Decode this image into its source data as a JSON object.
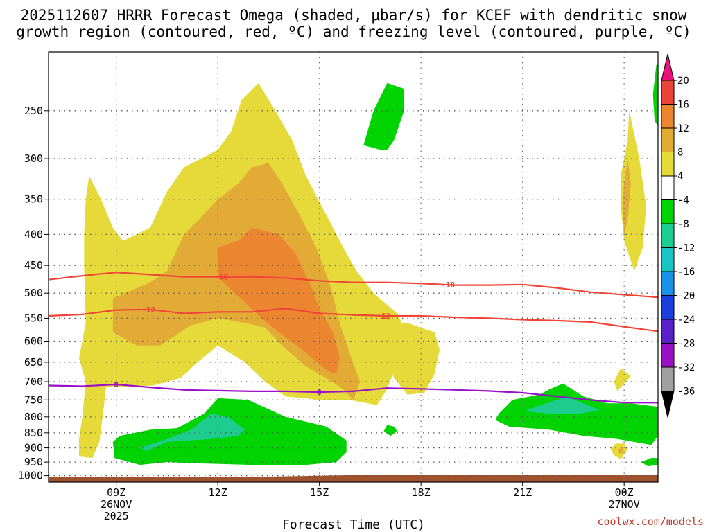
{
  "chart_data": {
    "type": "contour",
    "title_line1": "2025112607 HRRR Forecast Omega (shaded, μbar/s) for KCEF with dendritic snow",
    "title_line2": "growth region (contoured, red, ºC) and freezing level (contoured, purple, ºC)",
    "xlabel": "Forecast Time (UTC)",
    "ylabel": "",
    "credit": "coolwx.com/models",
    "y_axis": {
      "type": "log",
      "range_hpa": [
        1025,
        200
      ],
      "ticks": [
        250,
        300,
        350,
        400,
        450,
        500,
        550,
        600,
        650,
        700,
        750,
        800,
        850,
        900,
        950,
        1000
      ]
    },
    "x_axis": {
      "range_hours": [
        7,
        25
      ],
      "ticks": [
        {
          "hour": 9,
          "line1": "09Z",
          "line2": "26NOV",
          "line3": "2025"
        },
        {
          "hour": 12,
          "line1": "12Z",
          "line2": "",
          "line3": ""
        },
        {
          "hour": 15,
          "line1": "15Z",
          "line2": "",
          "line3": ""
        },
        {
          "hour": 18,
          "line1": "18Z",
          "line2": "",
          "line3": ""
        },
        {
          "hour": 21,
          "line1": "21Z",
          "line2": "",
          "line3": ""
        },
        {
          "hour": 24,
          "line1": "00Z",
          "line2": "27NOV",
          "line3": ""
        }
      ]
    },
    "colorbar": {
      "levels": [
        20,
        16,
        12,
        8,
        4,
        -4,
        -8,
        -12,
        -16,
        -20,
        -24,
        -28,
        -32,
        -36
      ],
      "colors": [
        "#e8137a",
        "#e8443a",
        "#ec8530",
        "#e2ab35",
        "#e6da3a",
        "#ffffff",
        "#00d400",
        "#1dcc8e",
        "#18c4c4",
        "#1a90ea",
        "#1a3fdc",
        "#5a20c8",
        "#9c10c4",
        "#a0a0a0",
        "#000000"
      ]
    },
    "color_keys": {
      "w4": "#e6da3a",
      "w8": "#e2ab35",
      "w12": "#ec8530",
      "m4": "#00d400",
      "m8": "#1dcc8e",
      "ground": "#a0522d",
      "dgz": "#f04436",
      "freezing": "#9a10c8"
    },
    "shaded_regions": [
      {
        "level": "w4",
        "points": [
          [
            7.9,
            930
          ],
          [
            7.9,
            870
          ],
          [
            8.0,
            800
          ],
          [
            8.1,
            700
          ],
          [
            7.9,
            640
          ],
          [
            8.1,
            560
          ],
          [
            8.05,
            450
          ],
          [
            8.05,
            400
          ],
          [
            8.1,
            350
          ],
          [
            8.2,
            320
          ],
          [
            8.55,
            350
          ],
          [
            8.9,
            390
          ],
          [
            9.2,
            410
          ],
          [
            9.6,
            400
          ],
          [
            10.0,
            390
          ],
          [
            10.5,
            340
          ],
          [
            11.0,
            310
          ],
          [
            11.5,
            300
          ],
          [
            12.0,
            290
          ],
          [
            12.4,
            270
          ],
          [
            12.7,
            240
          ],
          [
            13.2,
            225
          ],
          [
            13.7,
            250
          ],
          [
            14.2,
            280
          ],
          [
            14.6,
            320
          ],
          [
            14.9,
            345
          ],
          [
            15.3,
            380
          ],
          [
            15.7,
            420
          ],
          [
            16.1,
            460
          ],
          [
            16.6,
            500
          ],
          [
            17.3,
            540
          ],
          [
            17.5,
            570
          ],
          [
            17.3,
            650
          ],
          [
            17.0,
            720
          ],
          [
            16.7,
            765
          ],
          [
            15.9,
            750
          ],
          [
            15.0,
            750
          ],
          [
            14.0,
            740
          ],
          [
            13.4,
            700
          ],
          [
            12.8,
            650
          ],
          [
            12.0,
            610
          ],
          [
            11.4,
            650
          ],
          [
            10.9,
            690
          ],
          [
            10.1,
            710
          ],
          [
            8.7,
            715
          ],
          [
            8.6,
            800
          ],
          [
            8.5,
            880
          ],
          [
            8.3,
            935
          ]
        ]
      },
      {
        "level": "w4",
        "points": [
          [
            16.7,
            580
          ],
          [
            16.9,
            560
          ],
          [
            17.6,
            560
          ],
          [
            18.4,
            580
          ],
          [
            18.55,
            620
          ],
          [
            18.4,
            680
          ],
          [
            18.1,
            730
          ],
          [
            17.6,
            735
          ],
          [
            17.2,
            690
          ]
        ]
      },
      {
        "level": "w4",
        "points": [
          [
            23.9,
            320
          ],
          [
            24.1,
            280
          ],
          [
            24.15,
            250
          ],
          [
            24.45,
            300
          ],
          [
            24.65,
            360
          ],
          [
            24.55,
            420
          ],
          [
            24.3,
            460
          ],
          [
            24.0,
            410
          ],
          [
            23.9,
            360
          ]
        ]
      },
      {
        "level": "w4",
        "points": [
          [
            23.7,
            700
          ],
          [
            23.9,
            665
          ],
          [
            24.2,
            685
          ],
          [
            23.95,
            710
          ],
          [
            23.8,
            725
          ]
        ]
      },
      {
        "level": "w4",
        "points": [
          [
            23.6,
            905
          ],
          [
            23.75,
            885
          ],
          [
            24.0,
            885
          ],
          [
            24.1,
            905
          ],
          [
            23.9,
            940
          ],
          [
            23.7,
            925
          ]
        ]
      },
      {
        "level": "w8",
        "points": [
          [
            8.9,
            510
          ],
          [
            10.0,
            480
          ],
          [
            10.5,
            460
          ],
          [
            11.0,
            400
          ],
          [
            11.4,
            380
          ],
          [
            12.0,
            350
          ],
          [
            12.6,
            330
          ],
          [
            13.0,
            310
          ],
          [
            13.5,
            305
          ],
          [
            13.9,
            330
          ],
          [
            14.4,
            370
          ],
          [
            14.9,
            420
          ],
          [
            15.3,
            480
          ],
          [
            15.6,
            560
          ],
          [
            15.9,
            630
          ],
          [
            16.2,
            700
          ],
          [
            16.0,
            750
          ],
          [
            15.7,
            720
          ],
          [
            15.2,
            690
          ],
          [
            14.6,
            660
          ],
          [
            13.9,
            610
          ],
          [
            13.4,
            570
          ],
          [
            12.8,
            560
          ],
          [
            12.0,
            550
          ],
          [
            11.2,
            565
          ],
          [
            10.3,
            610
          ],
          [
            9.6,
            610
          ],
          [
            8.9,
            580
          ]
        ]
      },
      {
        "level": "w8",
        "points": [
          [
            24.0,
            330
          ],
          [
            24.1,
            300
          ],
          [
            24.2,
            330
          ],
          [
            24.1,
            380
          ],
          [
            24.0,
            400
          ],
          [
            23.95,
            360
          ]
        ]
      },
      {
        "level": "w8",
        "points": [
          [
            23.83,
            905
          ],
          [
            23.97,
            895
          ],
          [
            23.98,
            915
          ],
          [
            23.85,
            920
          ]
        ]
      },
      {
        "level": "w12",
        "points": [
          [
            12.0,
            420
          ],
          [
            12.6,
            410
          ],
          [
            13.0,
            390
          ],
          [
            13.8,
            400
          ],
          [
            14.3,
            430
          ],
          [
            14.7,
            480
          ],
          [
            15.0,
            530
          ],
          [
            15.4,
            580
          ],
          [
            15.6,
            640
          ],
          [
            15.5,
            680
          ],
          [
            15.2,
            670
          ],
          [
            14.5,
            620
          ],
          [
            13.8,
            580
          ],
          [
            13.3,
            550
          ],
          [
            12.5,
            500
          ],
          [
            12.0,
            470
          ]
        ]
      },
      {
        "level": "m4",
        "points": [
          [
            16.3,
            285
          ],
          [
            16.6,
            250
          ],
          [
            17.0,
            225
          ],
          [
            17.5,
            230
          ],
          [
            17.5,
            250
          ],
          [
            17.2,
            280
          ],
          [
            17.0,
            290
          ],
          [
            16.8,
            290
          ]
        ]
      },
      {
        "level": "m4",
        "points": [
          [
            16.9,
            845
          ],
          [
            17.0,
            825
          ],
          [
            17.2,
            830
          ],
          [
            17.3,
            845
          ],
          [
            17.1,
            860
          ]
        ]
      },
      {
        "level": "m4",
        "points": [
          [
            8.95,
            935
          ],
          [
            8.9,
            880
          ],
          [
            9.1,
            860
          ],
          [
            10.0,
            840
          ],
          [
            10.8,
            835
          ],
          [
            11.6,
            790
          ],
          [
            12.0,
            745
          ],
          [
            12.9,
            750
          ],
          [
            14.0,
            800
          ],
          [
            15.2,
            830
          ],
          [
            15.8,
            875
          ],
          [
            15.8,
            915
          ],
          [
            15.5,
            950
          ],
          [
            14.6,
            960
          ],
          [
            13.0,
            960
          ],
          [
            11.6,
            955
          ],
          [
            10.5,
            950
          ],
          [
            9.7,
            960
          ]
        ]
      },
      {
        "level": "m4",
        "points": [
          [
            20.3,
            790
          ],
          [
            20.7,
            750
          ],
          [
            21.5,
            735
          ],
          [
            21.8,
            720
          ],
          [
            22.2,
            705
          ],
          [
            22.8,
            740
          ],
          [
            23.5,
            760
          ],
          [
            24.2,
            760
          ],
          [
            25.0,
            770
          ],
          [
            25.0,
            860
          ],
          [
            24.8,
            890
          ],
          [
            23.8,
            870
          ],
          [
            22.8,
            860
          ],
          [
            21.8,
            840
          ],
          [
            20.6,
            830
          ],
          [
            20.2,
            810
          ]
        ]
      },
      {
        "level": "m4",
        "points": [
          [
            24.5,
            950
          ],
          [
            24.8,
            935
          ],
          [
            25.0,
            935
          ],
          [
            25.0,
            960
          ],
          [
            24.7,
            965
          ]
        ]
      },
      {
        "level": "m4",
        "points": [
          [
            24.85,
            235
          ],
          [
            24.95,
            210
          ],
          [
            25.0,
            210
          ],
          [
            25.0,
            265
          ],
          [
            24.9,
            260
          ]
        ]
      },
      {
        "level": "m8",
        "points": [
          [
            9.7,
            900
          ],
          [
            10.5,
            870
          ],
          [
            11.2,
            840
          ],
          [
            11.8,
            790
          ],
          [
            12.3,
            800
          ],
          [
            12.8,
            840
          ],
          [
            12.6,
            860
          ],
          [
            11.8,
            870
          ],
          [
            10.5,
            880
          ],
          [
            9.9,
            910
          ]
        ]
      },
      {
        "level": "m8",
        "points": [
          [
            21.1,
            780
          ],
          [
            21.7,
            760
          ],
          [
            22.3,
            740
          ],
          [
            22.8,
            760
          ],
          [
            23.3,
            780
          ],
          [
            22.7,
            790
          ],
          [
            21.8,
            790
          ],
          [
            21.2,
            785
          ]
        ]
      }
    ],
    "contours": [
      {
        "kind": "dgz",
        "value": -18,
        "label_hours": [
          12.1,
          18.8
        ],
        "points": [
          [
            7,
            475
          ],
          [
            8,
            468
          ],
          [
            9,
            462
          ],
          [
            10,
            466
          ],
          [
            11,
            470
          ],
          [
            12,
            470
          ],
          [
            13,
            470
          ],
          [
            14,
            472
          ],
          [
            15,
            477
          ],
          [
            16,
            480
          ],
          [
            17,
            480
          ],
          [
            18,
            482
          ],
          [
            19,
            485
          ],
          [
            20,
            485
          ],
          [
            21,
            484
          ],
          [
            22,
            490
          ],
          [
            23,
            498
          ],
          [
            24,
            503
          ],
          [
            25,
            508
          ]
        ]
      },
      {
        "kind": "dgz",
        "value": -12,
        "label_hours": [
          9.95,
          16.9
        ],
        "points": [
          [
            7,
            545
          ],
          [
            8,
            542
          ],
          [
            9,
            533
          ],
          [
            10,
            532
          ],
          [
            11,
            540
          ],
          [
            12,
            537
          ],
          [
            13,
            537
          ],
          [
            14,
            530
          ],
          [
            15,
            540
          ],
          [
            16,
            543
          ],
          [
            17,
            545
          ],
          [
            18,
            545
          ],
          [
            19,
            548
          ],
          [
            20,
            550
          ],
          [
            21,
            553
          ],
          [
            22,
            555
          ],
          [
            23,
            558
          ],
          [
            24,
            568
          ],
          [
            25,
            578
          ]
        ]
      },
      {
        "kind": "freezing",
        "value": 0,
        "label_hours": [
          9.0,
          15.0
        ],
        "points": [
          [
            7,
            710
          ],
          [
            8,
            712
          ],
          [
            9,
            707
          ],
          [
            10,
            715
          ],
          [
            11,
            722
          ],
          [
            12,
            724
          ],
          [
            13,
            726
          ],
          [
            14,
            726
          ],
          [
            15,
            728
          ],
          [
            16,
            726
          ],
          [
            17,
            717
          ],
          [
            18,
            719
          ],
          [
            19,
            722
          ],
          [
            20,
            725
          ],
          [
            21,
            730
          ],
          [
            22,
            740
          ],
          [
            23,
            750
          ],
          [
            24,
            758
          ],
          [
            25,
            758
          ]
        ]
      }
    ],
    "ground": {
      "top_hpa_start": 1005,
      "top_hpa_end": 996
    }
  }
}
